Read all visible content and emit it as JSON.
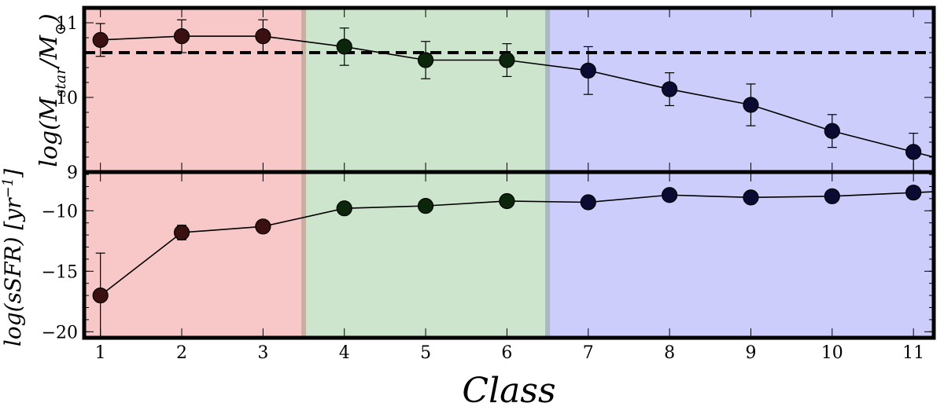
{
  "chart_data": [
    {
      "type": "line",
      "panel": "top",
      "ylabel": "log(M_star/M_⊙)",
      "ylim": [
        9.0,
        11.2
      ],
      "yticks": [
        9,
        10,
        11
      ],
      "x": [
        1,
        2,
        3,
        4,
        5,
        6,
        7,
        8,
        9,
        10,
        11
      ],
      "series": [
        {
          "values": [
            10.77,
            10.82,
            10.82,
            10.68,
            10.5,
            10.5,
            10.36,
            10.11,
            9.9,
            9.55,
            9.27
          ],
          "err": [
            0.22,
            0.22,
            0.22,
            0.25,
            0.25,
            0.22,
            0.32,
            0.22,
            0.28,
            0.22,
            0.25
          ]
        }
      ],
      "reference_line": {
        "y": 10.6,
        "style": "dashed"
      },
      "regions": [
        {
          "from": 0.8,
          "to": 3.5,
          "color": "#f8c8c8"
        },
        {
          "from": 3.5,
          "to": 6.5,
          "color": "#cce5cc"
        },
        {
          "from": 6.5,
          "to": 11.25,
          "color": "#cccdfb"
        }
      ],
      "grid": false
    },
    {
      "type": "line",
      "panel": "bottom",
      "xlabel": "Class",
      "ylabel": "log(sSFR) [yr⁻¹]",
      "ylim": [
        -20.5,
        -6.8
      ],
      "yticks": [
        -20,
        -15,
        -10
      ],
      "xticks": [
        1,
        2,
        3,
        4,
        5,
        6,
        7,
        8,
        9,
        10,
        11
      ],
      "x": [
        1,
        2,
        3,
        4,
        5,
        6,
        7,
        8,
        9,
        10,
        11
      ],
      "series": [
        {
          "values": [
            -17.0,
            -11.8,
            -11.3,
            -9.8,
            -9.6,
            -9.2,
            -9.3,
            -8.7,
            -8.9,
            -8.8,
            -8.5
          ],
          "err": [
            3.5,
            0.6,
            0.5,
            0.4,
            0.4,
            0.4,
            0.4,
            0.3,
            0.3,
            0.3,
            0.3
          ]
        }
      ],
      "regions": [
        {
          "from": 0.8,
          "to": 3.5,
          "color": "#f8c8c8"
        },
        {
          "from": 3.5,
          "to": 6.5,
          "color": "#cce5cc"
        },
        {
          "from": 6.5,
          "to": 11.25,
          "color": "#cccdfb"
        }
      ],
      "grid": false
    }
  ],
  "marker_colors": [
    "#3a1010",
    "#3a1010",
    "#3a1010",
    "#0c260c",
    "#0c260c",
    "#0c260c",
    "#0a0a33",
    "#0a0a33",
    "#0a0a33",
    "#0a0a33",
    "#0a0a33"
  ],
  "boundary_colors": [
    "#c8b0a0",
    "#a8b8c8"
  ]
}
